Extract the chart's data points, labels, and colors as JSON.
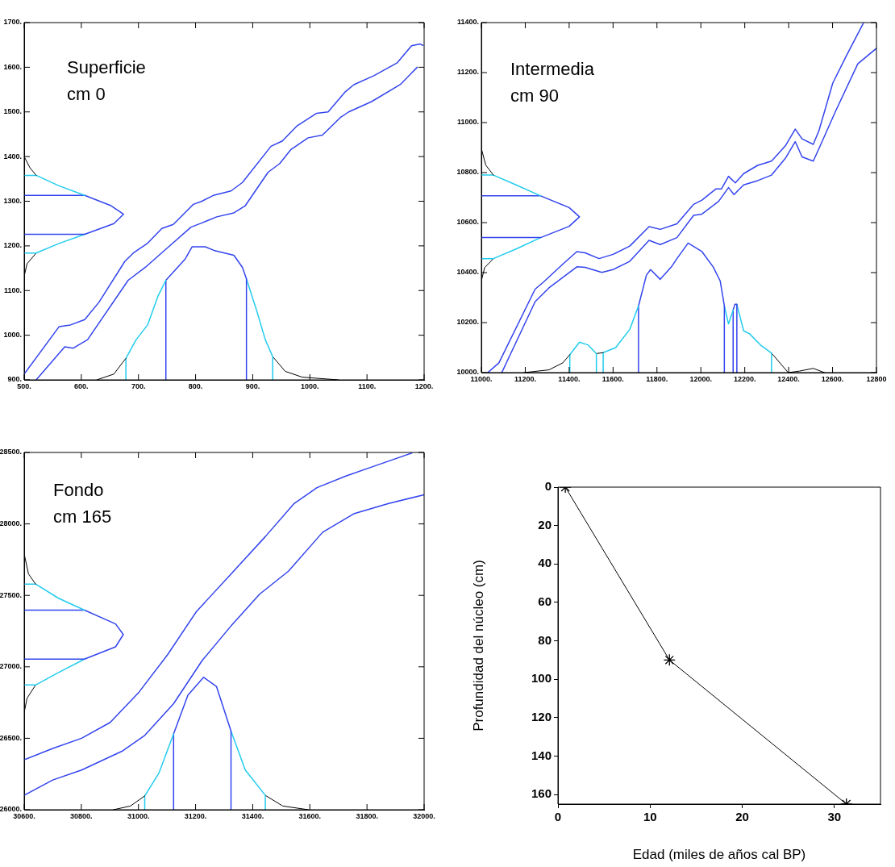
{
  "chart_data": [
    {
      "type": "line",
      "annotations": [
        "Superficie",
        "cm 0"
      ],
      "xlim": [
        500,
        1200
      ],
      "ylim": [
        900,
        1700
      ],
      "xticks": [
        {
          "value": 500,
          "label": "500."
        },
        {
          "value": 600,
          "label": "600."
        },
        {
          "value": 700,
          "label": "700."
        },
        {
          "value": 800,
          "label": "800."
        },
        {
          "value": 900,
          "label": "900."
        },
        {
          "value": 1000,
          "label": "1000."
        },
        {
          "value": 1100,
          "label": "1100."
        },
        {
          "value": 1200,
          "label": "1200."
        }
      ],
      "yticks": [
        {
          "value": 900,
          "label": "900."
        },
        {
          "value": 1000,
          "label": "1000."
        },
        {
          "value": 1100,
          "label": "1100."
        },
        {
          "value": 1200,
          "label": "1200."
        },
        {
          "value": 1300,
          "label": "1300."
        },
        {
          "value": 1400,
          "label": "1400."
        },
        {
          "value": 1500,
          "label": "1500."
        },
        {
          "value": 1600,
          "label": "1600."
        },
        {
          "value": 1700,
          "label": "1700."
        }
      ],
      "series": [
        {
          "color": "#3344ee",
          "x": [
            500,
            561,
            581,
            606,
            631,
            676,
            691,
            716,
            741,
            761,
            796,
            811,
            831,
            862,
            882,
            932,
            952,
            977,
            1012,
            1032,
            1062,
            1077,
            1112,
            1153,
            1178,
            1193,
            1198
          ],
          "values": [
            913,
            1019,
            1023,
            1035,
            1074,
            1165,
            1184,
            1206,
            1239,
            1248,
            1293,
            1300,
            1313,
            1323,
            1342,
            1423,
            1435,
            1468,
            1497,
            1500,
            1545,
            1561,
            1581,
            1610,
            1648,
            1652,
            1649
          ]
        },
        {
          "color": "#3344ee",
          "x": [
            521,
            571,
            586,
            611,
            682,
            712,
            752,
            792,
            812,
            837,
            867,
            887,
            927,
            947,
            967,
            997,
            1022,
            1053,
            1068,
            1108,
            1158,
            1188
          ],
          "values": [
            900,
            974,
            971,
            990,
            1123,
            1152,
            1197,
            1242,
            1252,
            1265,
            1274,
            1290,
            1365,
            1384,
            1416,
            1442,
            1448,
            1487,
            1500,
            1523,
            1561,
            1600
          ]
        },
        {
          "color": "#000000",
          "x": [
            627,
            657,
            676,
            678
          ],
          "values": [
            900,
            913,
            945,
            948
          ]
        },
        {
          "color": "#22ccee",
          "x": [
            678,
            678,
            696,
            716,
            734,
            748
          ],
          "values": [
            900,
            948,
            990,
            1023,
            1087,
            1123
          ]
        },
        {
          "color": "#3344ee",
          "x": [
            748,
            748,
            782,
            794,
            817,
            832,
            867,
            882,
            889,
            889
          ],
          "values": [
            900,
            1123,
            1171,
            1198,
            1198,
            1190,
            1179,
            1152,
            1126,
            900
          ]
        },
        {
          "color": "#22ccee",
          "x": [
            889,
            907,
            922,
            935,
            935
          ],
          "values": [
            1126,
            1055,
            990,
            952,
            900
          ]
        },
        {
          "color": "#000000",
          "x": [
            935,
            957,
            987,
            1050
          ],
          "values": [
            952,
            919,
            906,
            900
          ]
        },
        {
          "color": "#000000",
          "x": [
            500,
            510,
            521
          ],
          "values": [
            1400,
            1375,
            1358
          ]
        },
        {
          "color": "#22ccee",
          "x": [
            500,
            521,
            560,
            606
          ],
          "values": [
            1358,
            1358,
            1335,
            1313
          ]
        },
        {
          "color": "#3344ee",
          "x": [
            500,
            606,
            652,
            674,
            657,
            606,
            500
          ],
          "values": [
            1313,
            1313,
            1290,
            1271,
            1250,
            1226,
            1226
          ]
        },
        {
          "color": "#22ccee",
          "x": [
            606,
            560,
            521,
            500
          ],
          "values": [
            1226,
            1205,
            1184,
            1184
          ]
        },
        {
          "color": "#000000",
          "x": [
            521,
            505,
            500
          ],
          "values": [
            1184,
            1160,
            1132
          ]
        }
      ]
    },
    {
      "type": "line",
      "annotations": [
        "Intermedia",
        "cm 90"
      ],
      "xlim": [
        11000,
        12800
      ],
      "ylim": [
        10000,
        11400
      ],
      "xticks": [
        {
          "value": 11000,
          "label": "11000."
        },
        {
          "value": 11200,
          "label": "11200."
        },
        {
          "value": 11400,
          "label": "11400."
        },
        {
          "value": 11600,
          "label": "11600."
        },
        {
          "value": 11800,
          "label": "11800."
        },
        {
          "value": 12000,
          "label": "12000."
        },
        {
          "value": 12200,
          "label": "12200."
        },
        {
          "value": 12400,
          "label": "12400."
        },
        {
          "value": 12600,
          "label": "12600."
        },
        {
          "value": 12800,
          "label": "12800"
        }
      ],
      "yticks": [
        {
          "value": 10000,
          "label": "10000."
        },
        {
          "value": 10200,
          "label": "10200."
        },
        {
          "value": 10400,
          "label": "10400."
        },
        {
          "value": 10600,
          "label": "10600."
        },
        {
          "value": 10800,
          "label": "10800."
        },
        {
          "value": 11000,
          "label": "11000."
        },
        {
          "value": 11200,
          "label": "11200."
        },
        {
          "value": 11400,
          "label": "11400."
        }
      ],
      "series": [
        {
          "color": "#3344ee",
          "x": [
            11029,
            11080,
            11245,
            11283,
            11371,
            11435,
            11473,
            11536,
            11600,
            11676,
            11764,
            11815,
            11891,
            11967,
            12005,
            12069,
            12094,
            12126,
            12157,
            12195,
            12259,
            12322,
            12385,
            12430,
            12461,
            12512,
            12538,
            12601,
            12664,
            12740
          ],
          "values": [
            10000,
            10039,
            10334,
            10362,
            10434,
            10484,
            10479,
            10456,
            10473,
            10506,
            10584,
            10573,
            10595,
            10673,
            10690,
            10735,
            10735,
            10785,
            10759,
            10796,
            10829,
            10846,
            10907,
            10974,
            10935,
            10913,
            10968,
            11158,
            11269,
            11397
          ]
        },
        {
          "color": "#3344ee",
          "x": [
            11093,
            11245,
            11308,
            11435,
            11473,
            11549,
            11600,
            11676,
            11764,
            11815,
            11891,
            11967,
            12005,
            12081,
            12126,
            12151,
            12195,
            12259,
            12322,
            12385,
            12430,
            12461,
            12512,
            12538,
            12614,
            12715,
            12800
          ],
          "values": [
            10000,
            10284,
            10339,
            10423,
            10421,
            10401,
            10412,
            10445,
            10529,
            10512,
            10540,
            10629,
            10634,
            10685,
            10740,
            10712,
            10751,
            10768,
            10790,
            10857,
            10924,
            10863,
            10846,
            10896,
            11046,
            11235,
            11297
          ]
        },
        {
          "color": "#000000",
          "x": [
            11194,
            11308,
            11371,
            11403
          ],
          "values": [
            10000,
            10011,
            10039,
            10072
          ]
        },
        {
          "color": "#22ccee",
          "x": [
            11403,
            11403,
            11447,
            11485,
            11524,
            11524
          ],
          "values": [
            10000,
            10072,
            10122,
            10111,
            10076,
            10000
          ]
        },
        {
          "color": "#000000",
          "x": [
            11524,
            11555
          ],
          "values": [
            10076,
            10080
          ]
        },
        {
          "color": "#22ccee",
          "x": [
            11555,
            11555,
            11612,
            11676,
            11716
          ],
          "values": [
            10000,
            10080,
            10100,
            10173,
            10267
          ]
        },
        {
          "color": "#3344ee",
          "x": [
            11716,
            11716,
            11752,
            11771,
            11815,
            11866,
            11891,
            11942,
            12005,
            12056,
            12088,
            12107,
            12107
          ],
          "values": [
            10000,
            10267,
            10390,
            10412,
            10373,
            10423,
            10456,
            10518,
            10484,
            10423,
            10367,
            10267,
            10000
          ]
        },
        {
          "color": "#22ccee",
          "x": [
            12107,
            12126,
            12147
          ],
          "values": [
            10267,
            10195,
            10250
          ]
        },
        {
          "color": "#3344ee",
          "x": [
            12147,
            12147,
            12155,
            12164,
            12164
          ],
          "values": [
            10000,
            10250,
            10273,
            10273,
            10000
          ]
        },
        {
          "color": "#22ccee",
          "x": [
            12164,
            12195,
            12221,
            12271,
            12322,
            12322
          ],
          "values": [
            10273,
            10167,
            10156,
            10111,
            10078,
            10000
          ]
        },
        {
          "color": "#000000",
          "x": [
            12322,
            12398,
            12449,
            12512,
            12563
          ],
          "values": [
            10078,
            10000,
            10006,
            10017,
            10000
          ]
        },
        {
          "color": "#000000",
          "x": [
            11000,
            11020,
            11055
          ],
          "values": [
            10896,
            10830,
            10790
          ]
        },
        {
          "color": "#22ccee",
          "x": [
            11000,
            11055,
            11160,
            11270
          ],
          "values": [
            10790,
            10790,
            10750,
            10707
          ]
        },
        {
          "color": "#3344ee",
          "x": [
            11000,
            11270,
            11400,
            11447,
            11400,
            11270,
            11000
          ],
          "values": [
            10707,
            10707,
            10660,
            10623,
            10585,
            10540,
            10540
          ]
        },
        {
          "color": "#22ccee",
          "x": [
            11270,
            11160,
            11055,
            11000
          ],
          "values": [
            10540,
            10495,
            10456,
            10456
          ]
        },
        {
          "color": "#000000",
          "x": [
            11055,
            11015,
            11000
          ],
          "values": [
            10456,
            10420,
            10367
          ]
        }
      ]
    },
    {
      "type": "line",
      "annotations": [
        "Fondo",
        "cm 165"
      ],
      "xlim": [
        30600,
        32000
      ],
      "ylim": [
        26000,
        28500
      ],
      "xticks": [
        {
          "value": 30600,
          "label": "30600."
        },
        {
          "value": 30800,
          "label": "30800."
        },
        {
          "value": 31000,
          "label": "31000."
        },
        {
          "value": 31200,
          "label": "31200."
        },
        {
          "value": 31400,
          "label": "31400."
        },
        {
          "value": 31600,
          "label": "31600."
        },
        {
          "value": 31800,
          "label": "31800."
        },
        {
          "value": 32000,
          "label": "32000."
        }
      ],
      "yticks": [
        {
          "value": 26000,
          "label": "26000."
        },
        {
          "value": 26500,
          "label": "26500."
        },
        {
          "value": 27000,
          "label": "27000."
        },
        {
          "value": 27500,
          "label": "27500."
        },
        {
          "value": 28000,
          "label": "28000."
        },
        {
          "value": 28500,
          "label": "28500."
        }
      ],
      "series": [
        {
          "color": "#3344ee",
          "x": [
            30600,
            30700,
            30801,
            30901,
            31002,
            31102,
            31203,
            31324,
            31444,
            31545,
            31625,
            31726,
            31826,
            31957
          ],
          "values": [
            26349,
            26429,
            26500,
            26611,
            26823,
            27085,
            27387,
            27649,
            27911,
            28143,
            28254,
            28335,
            28405,
            28496
          ]
        },
        {
          "color": "#3344ee",
          "x": [
            30600,
            30700,
            30801,
            30942,
            31022,
            31123,
            31223,
            31324,
            31424,
            31525,
            31645,
            31756,
            31876,
            32000
          ],
          "values": [
            26101,
            26208,
            26278,
            26409,
            26520,
            26742,
            27044,
            27286,
            27508,
            27669,
            27942,
            28073,
            28143,
            28204
          ]
        },
        {
          "color": "#000000",
          "x": [
            30912,
            30972,
            31022
          ],
          "values": [
            26000,
            26026,
            26097
          ]
        },
        {
          "color": "#22ccee",
          "x": [
            31022,
            31022,
            31072,
            31123
          ],
          "values": [
            26000,
            26097,
            26258,
            26530
          ]
        },
        {
          "color": "#3344ee",
          "x": [
            31123,
            31123,
            31173,
            31228,
            31273,
            31324,
            31324
          ],
          "values": [
            26000,
            26530,
            26802,
            26927,
            26863,
            26550,
            26000
          ]
        },
        {
          "color": "#22ccee",
          "x": [
            31324,
            31374,
            31444,
            31444
          ],
          "values": [
            26550,
            26278,
            26101,
            26000
          ]
        },
        {
          "color": "#000000",
          "x": [
            31444,
            31505,
            31595
          ],
          "values": [
            26101,
            26026,
            26000
          ]
        },
        {
          "color": "#000000",
          "x": [
            30600,
            30615,
            30640
          ],
          "values": [
            27790,
            27650,
            27579
          ]
        },
        {
          "color": "#22ccee",
          "x": [
            30600,
            30640,
            30720,
            30811
          ],
          "values": [
            27579,
            27579,
            27480,
            27397
          ]
        },
        {
          "color": "#3344ee",
          "x": [
            30600,
            30811,
            30920,
            30947,
            30920,
            30811,
            30600
          ],
          "values": [
            27397,
            27397,
            27300,
            27226,
            27140,
            27054,
            27054
          ]
        },
        {
          "color": "#22ccee",
          "x": [
            30811,
            30720,
            30640,
            30600
          ],
          "values": [
            27054,
            26960,
            26873,
            26873
          ]
        },
        {
          "color": "#000000",
          "x": [
            30640,
            30610,
            30600
          ],
          "values": [
            26873,
            26780,
            26681
          ]
        }
      ]
    },
    {
      "type": "line",
      "xlabel": "Edad (miles de años cal BP)",
      "ylabel": "Profundidad del núcleo (cm)",
      "xlim": [
        0,
        35
      ],
      "ylim": [
        165,
        0
      ],
      "xticks": [
        0,
        10,
        20,
        30
      ],
      "yticks": [
        0,
        20,
        40,
        60,
        80,
        100,
        120,
        140,
        160
      ],
      "marker": "cross",
      "series": [
        {
          "color": "#000000",
          "x": [
            0.8,
            12.1,
            31.3
          ],
          "values": [
            0,
            90,
            165
          ]
        }
      ]
    }
  ]
}
